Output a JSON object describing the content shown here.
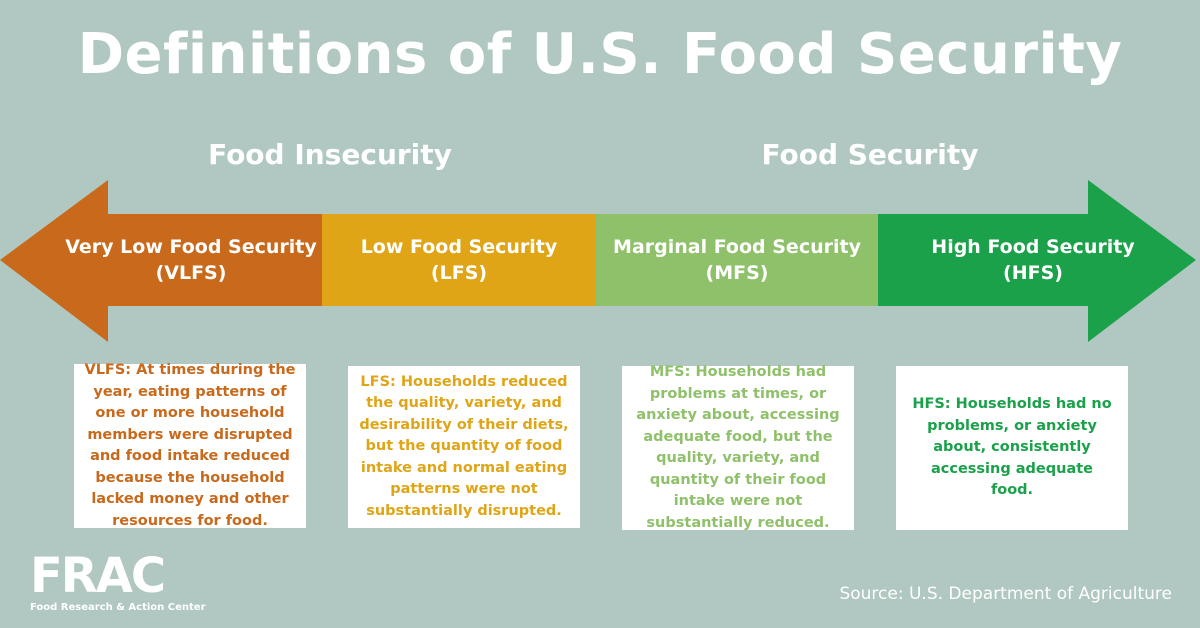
{
  "title": "Definitions of U.S. Food Security",
  "section_labels": {
    "left": "Food Insecurity",
    "right": "Food Security"
  },
  "colors": {
    "background": "#b0c8c1",
    "vlfs": "#c8691c",
    "lfs": "#e0a516",
    "mfs": "#8fc06a",
    "hfs": "#1aa14a"
  },
  "segments": [
    {
      "name_line1": "Very Low Food Security",
      "name_line2": "(VLFS)"
    },
    {
      "name_line1": "Low Food Security",
      "name_line2": "(LFS)"
    },
    {
      "name_line1": "Marginal Food Security",
      "name_line2": "(MFS)"
    },
    {
      "name_line1": "High Food Security",
      "name_line2": "(HFS)"
    }
  ],
  "definitions": [
    "VLFS: At times during the year, eating patterns of one or more household members were disrupted and food intake reduced because the household lacked money and other resources for food.",
    "LFS: Households reduced the quality, variety, and desirability of their diets, but the quantity of food intake and normal eating patterns were not substantially disrupted.",
    "MFS: Households had problems at times, or anxiety about, accessing adequate food, but the quality, variety, and quantity of their food intake were not substantially reduced.",
    "HFS: Households had no problems, or anxiety about, consistently accessing adequate food."
  ],
  "logo": {
    "mark": "FRAC",
    "subtitle": "Food Research & Action Center"
  },
  "source": "Source: U.S. Department of Agriculture"
}
